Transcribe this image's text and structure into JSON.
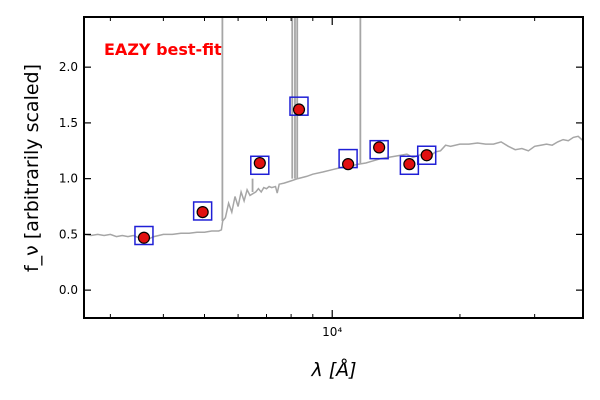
{
  "chart_data": {
    "type": "scatter",
    "annotation": {
      "text": "EAZY best-fit",
      "color": "#ff0000"
    },
    "xlabel": "λ [Å]",
    "ylabel": "f_ν [arbitrarily scaled]",
    "xscale": "log",
    "xlim": [
      2600,
      39000
    ],
    "ylim": [
      -0.25,
      2.45
    ],
    "yticks": [
      0.0,
      0.5,
      1.0,
      1.5,
      2.0
    ],
    "ytick_labels": [
      "0.0",
      "0.5",
      "1.0",
      "1.5",
      "2.0"
    ],
    "x_major_tick": {
      "value": 10000,
      "label": "10⁴"
    },
    "x_minor_ticks": [
      3000,
      4000,
      5000,
      6000,
      7000,
      8000,
      9000,
      20000,
      30000
    ],
    "grid": false,
    "observed_points": [
      {
        "x": 3600,
        "y": 0.47
      },
      {
        "x": 4950,
        "y": 0.7
      },
      {
        "x": 6750,
        "y": 1.14
      },
      {
        "x": 8350,
        "y": 1.62
      },
      {
        "x": 10900,
        "y": 1.13
      },
      {
        "x": 12900,
        "y": 1.28
      },
      {
        "x": 15200,
        "y": 1.13
      },
      {
        "x": 16700,
        "y": 1.21
      }
    ],
    "model_fluxes": [
      {
        "x": 3600,
        "y": 0.49
      },
      {
        "x": 4950,
        "y": 0.71
      },
      {
        "x": 6750,
        "y": 1.12
      },
      {
        "x": 8350,
        "y": 1.65
      },
      {
        "x": 10900,
        "y": 1.18
      },
      {
        "x": 12900,
        "y": 1.26
      },
      {
        "x": 15200,
        "y": 1.12
      },
      {
        "x": 16700,
        "y": 1.21
      }
    ],
    "sed_curve": [
      [
        2600,
        0.5
      ],
      [
        2700,
        0.49
      ],
      [
        2800,
        0.5
      ],
      [
        2900,
        0.49
      ],
      [
        3000,
        0.5
      ],
      [
        3100,
        0.48
      ],
      [
        3200,
        0.49
      ],
      [
        3300,
        0.48
      ],
      [
        3400,
        0.49
      ],
      [
        3500,
        0.47
      ],
      [
        3600,
        0.48
      ],
      [
        3700,
        0.46
      ],
      [
        3800,
        0.48
      ],
      [
        3900,
        0.49
      ],
      [
        4000,
        0.5
      ],
      [
        4200,
        0.5
      ],
      [
        4400,
        0.51
      ],
      [
        4600,
        0.51
      ],
      [
        4800,
        0.52
      ],
      [
        5000,
        0.52
      ],
      [
        5200,
        0.53
      ],
      [
        5400,
        0.53
      ],
      [
        5480,
        0.54
      ],
      [
        5520,
        0.62
      ],
      [
        5600,
        0.65
      ],
      [
        5700,
        0.78
      ],
      [
        5800,
        0.7
      ],
      [
        5900,
        0.84
      ],
      [
        6000,
        0.75
      ],
      [
        6100,
        0.88
      ],
      [
        6200,
        0.8
      ],
      [
        6300,
        0.9
      ],
      [
        6400,
        0.85
      ],
      [
        6600,
        0.88
      ],
      [
        6700,
        0.91
      ],
      [
        6800,
        0.88
      ],
      [
        6900,
        0.92
      ],
      [
        7000,
        0.91
      ],
      [
        7100,
        0.93
      ],
      [
        7200,
        0.92
      ],
      [
        7350,
        0.93
      ],
      [
        7420,
        0.87
      ],
      [
        7500,
        0.95
      ],
      [
        7700,
        0.96
      ],
      [
        8000,
        0.98
      ],
      [
        8300,
        1.0
      ],
      [
        8700,
        1.02
      ],
      [
        9000,
        1.04
      ],
      [
        9500,
        1.06
      ],
      [
        10000,
        1.08
      ],
      [
        10500,
        1.1
      ],
      [
        11000,
        1.11
      ],
      [
        11500,
        1.13
      ],
      [
        12000,
        1.14
      ],
      [
        12500,
        1.16
      ],
      [
        13000,
        1.18
      ],
      [
        13500,
        1.19
      ],
      [
        14000,
        1.2
      ],
      [
        14500,
        1.21
      ],
      [
        15000,
        1.22
      ],
      [
        15500,
        1.19
      ],
      [
        16000,
        1.21
      ],
      [
        16500,
        1.22
      ],
      [
        17000,
        1.2
      ],
      [
        17500,
        1.24
      ],
      [
        18000,
        1.25
      ],
      [
        18500,
        1.3
      ],
      [
        19000,
        1.29
      ],
      [
        20000,
        1.31
      ],
      [
        21000,
        1.31
      ],
      [
        22000,
        1.32
      ],
      [
        23000,
        1.31
      ],
      [
        24000,
        1.31
      ],
      [
        25000,
        1.33
      ],
      [
        26000,
        1.29
      ],
      [
        27000,
        1.26
      ],
      [
        28000,
        1.27
      ],
      [
        29000,
        1.25
      ],
      [
        30000,
        1.29
      ],
      [
        31000,
        1.3
      ],
      [
        32000,
        1.31
      ],
      [
        33000,
        1.3
      ],
      [
        34000,
        1.33
      ],
      [
        35000,
        1.35
      ],
      [
        36000,
        1.34
      ],
      [
        37000,
        1.37
      ],
      [
        38000,
        1.38
      ],
      [
        39000,
        1.34
      ]
    ],
    "emission_lines": [
      {
        "x": 5510,
        "y": 2.45
      },
      {
        "x": 6490,
        "y": 1.0
      },
      {
        "x": 8050,
        "y": 2.45
      },
      {
        "x": 8170,
        "y": 2.45
      },
      {
        "x": 8270,
        "y": 2.45
      },
      {
        "x": 11650,
        "y": 2.45
      }
    ],
    "colors": {
      "sed": "#a6a6a6",
      "model_box": "#1f1fd6",
      "point_fill": "#e01010",
      "point_edge": "#000000",
      "annotation": "#ff0000"
    }
  }
}
